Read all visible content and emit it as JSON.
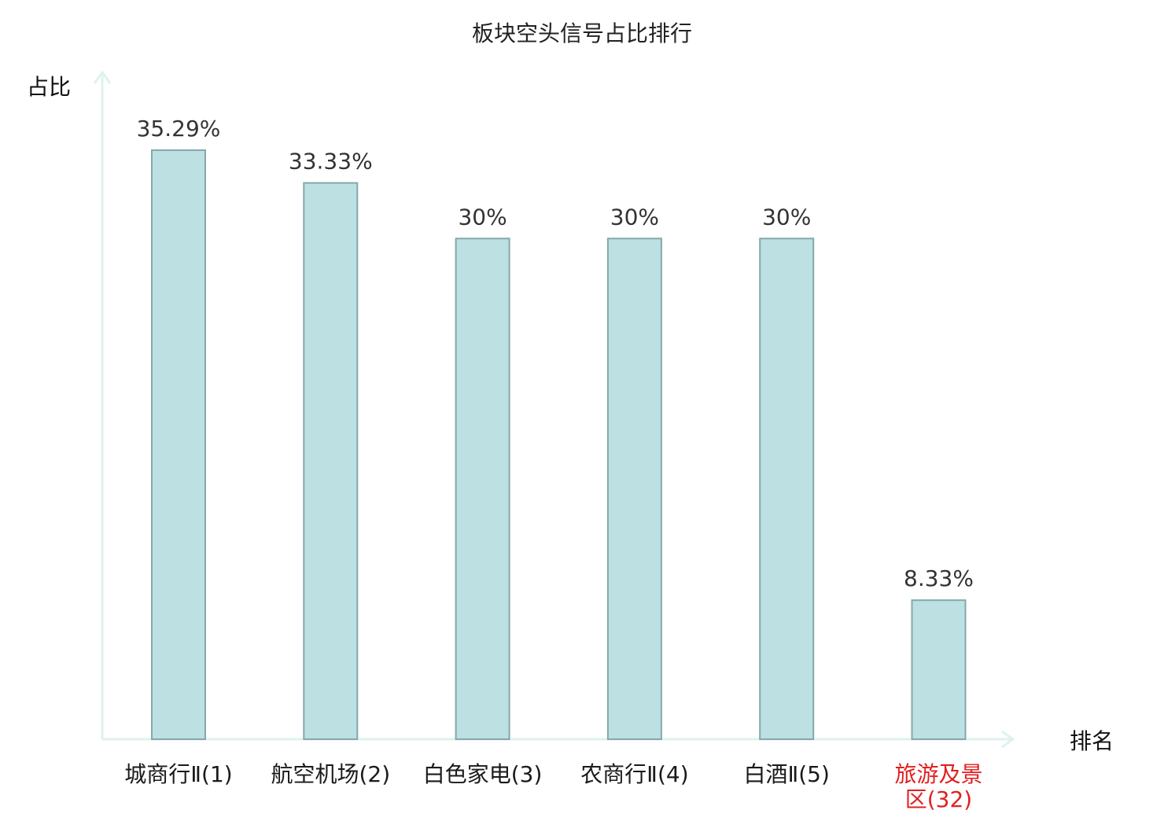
{
  "chart_data": {
    "type": "bar",
    "title": "板块空头信号占比排行",
    "ylabel": "占比",
    "xlabel": "排名",
    "ylim": [
      0,
      40
    ],
    "grid": false,
    "legend": "none",
    "categories": [
      "城商行Ⅱ(1)",
      "航空机场(2)",
      "白色家电(3)",
      "农商行Ⅱ(4)",
      "白酒Ⅱ(5)",
      "旅游及景区(32)"
    ],
    "category_lines": [
      [
        "城商行Ⅱ(1)"
      ],
      [
        "航空机场(2)"
      ],
      [
        "白色家电(3)"
      ],
      [
        "农商行Ⅱ(4)"
      ],
      [
        "白酒Ⅱ(5)"
      ],
      [
        "旅游及景",
        "区(32)"
      ]
    ],
    "values": [
      35.29,
      33.33,
      30,
      30,
      30,
      8.33
    ],
    "value_labels": [
      "35.29%",
      "33.33%",
      "30%",
      "30%",
      "30%",
      "8.33%"
    ],
    "highlight_index": 5
  },
  "colors": {
    "bar_fill": "#bde0e3",
    "bar_stroke": "#86a8aa",
    "axis": "#dff2ef",
    "text": "#333333",
    "label_text": "#1a1a1a",
    "highlight_text": "#e02020"
  }
}
